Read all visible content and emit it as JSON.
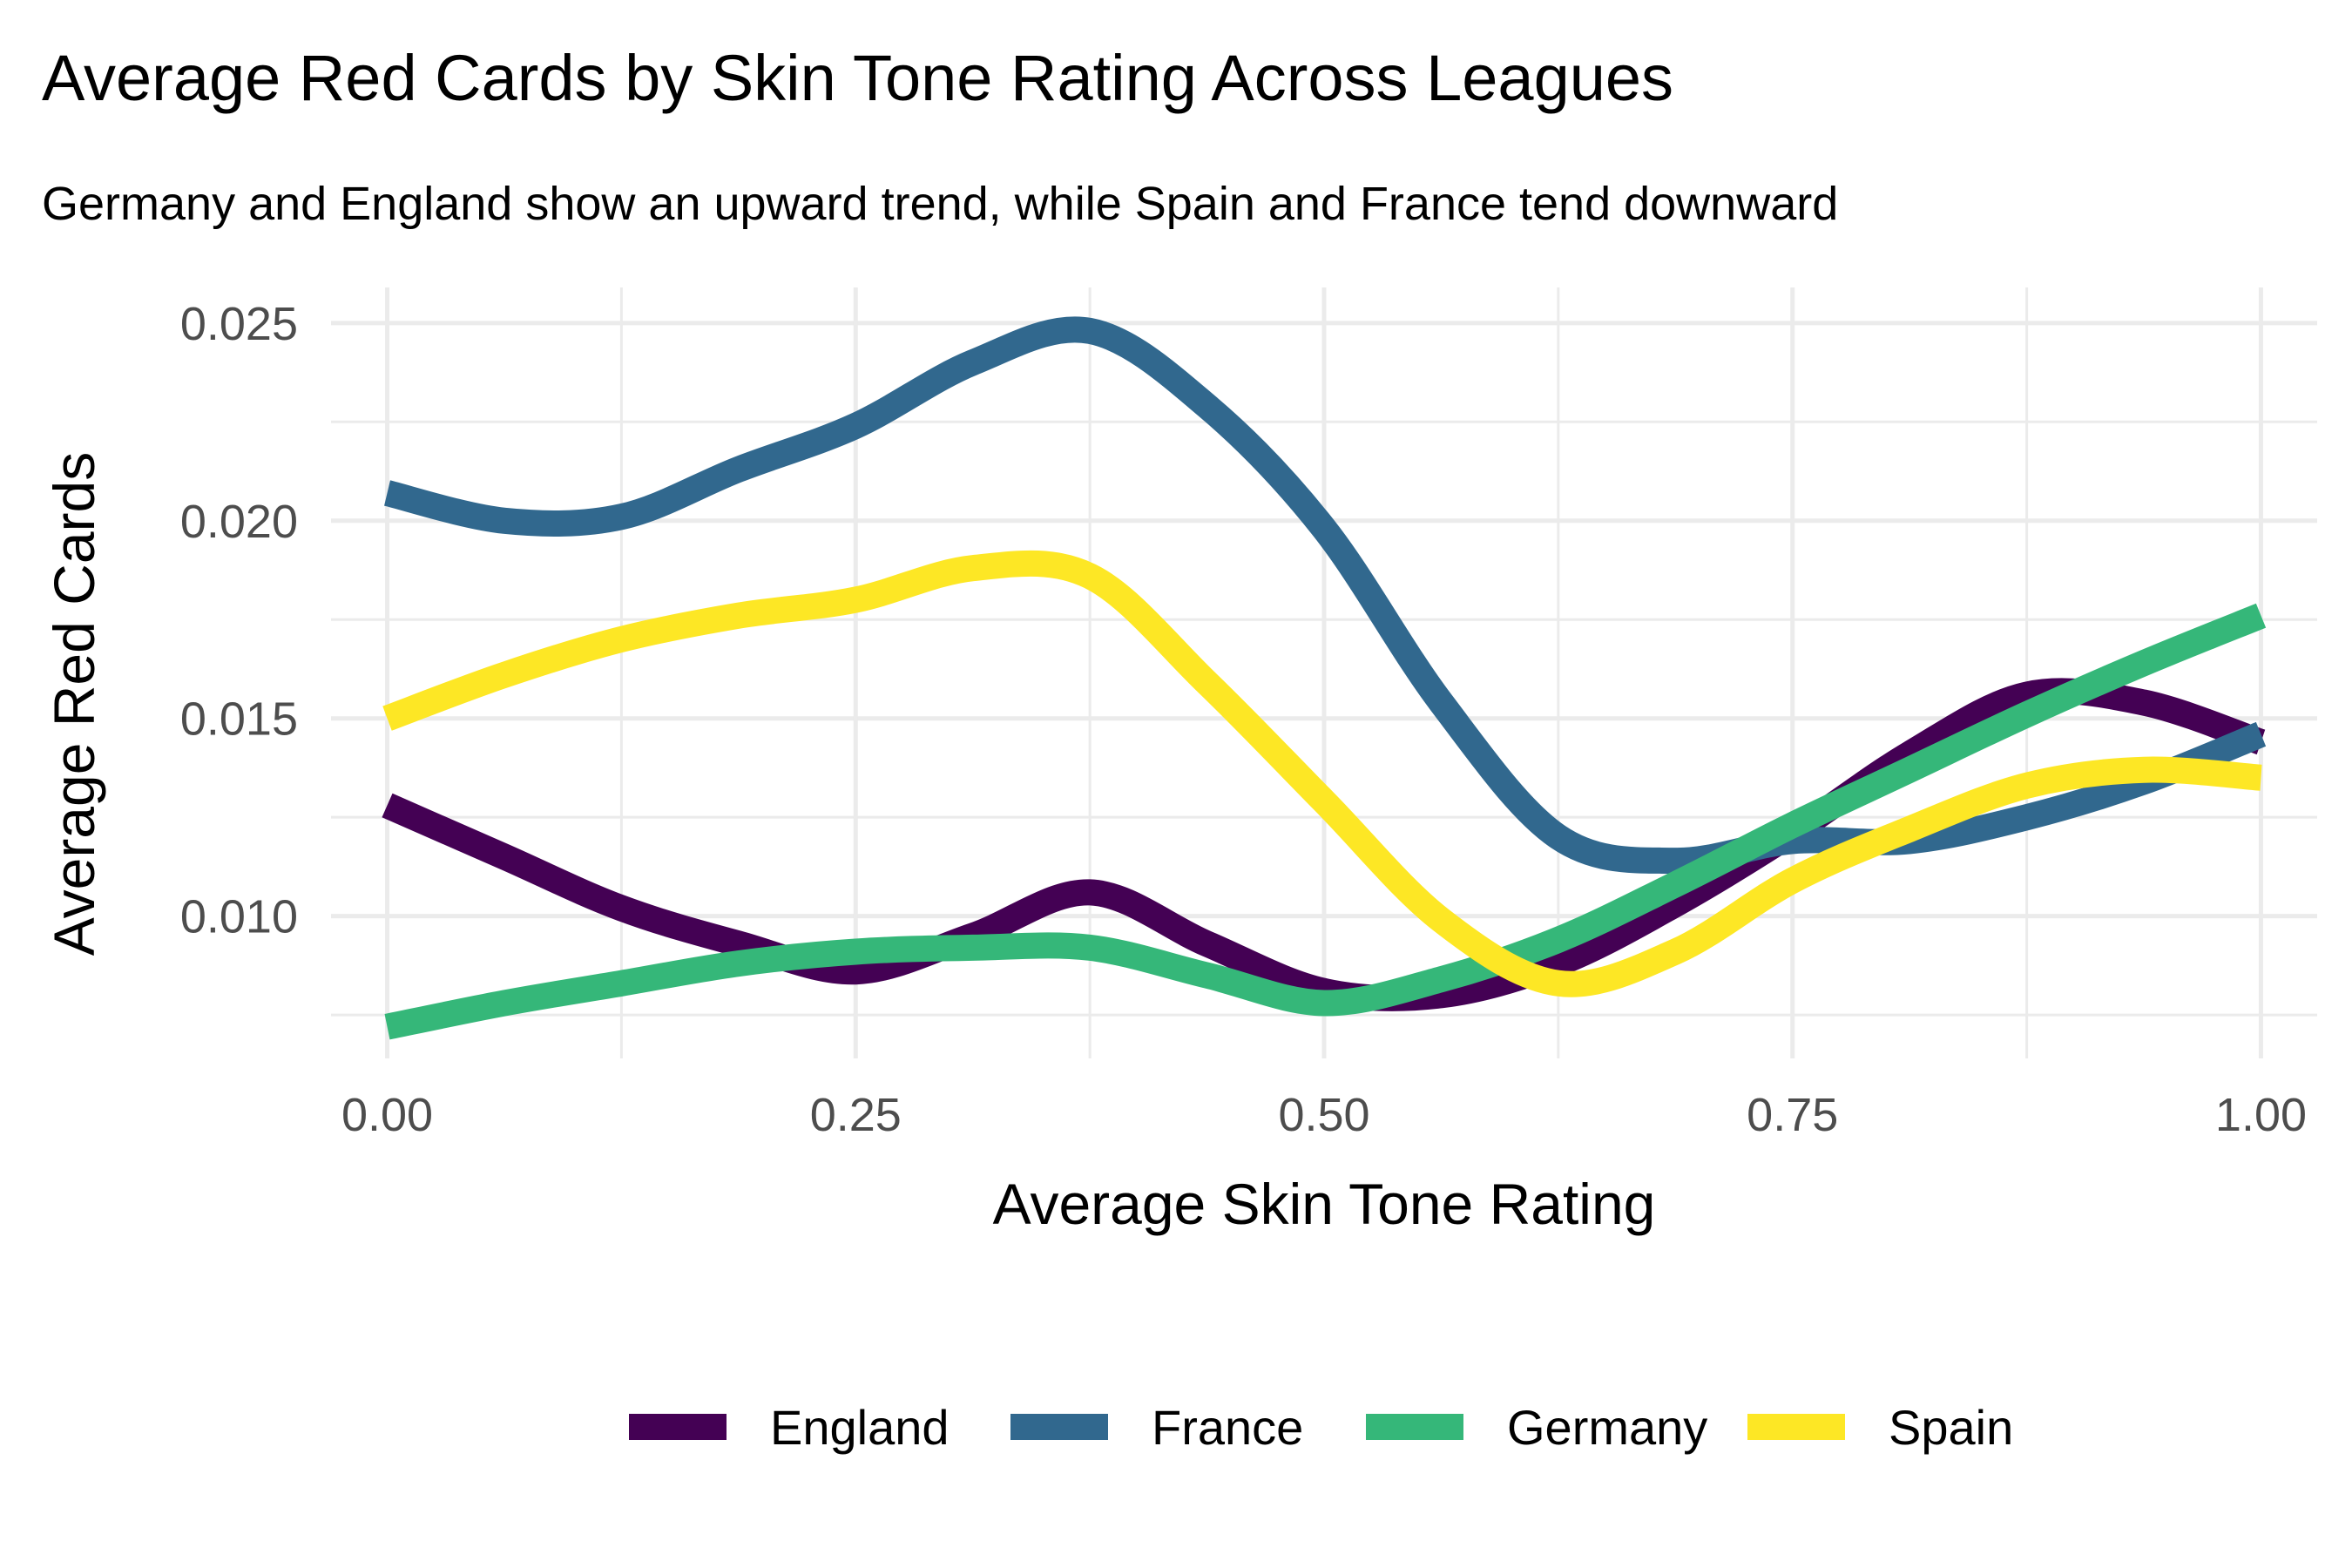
{
  "chart_data": {
    "type": "line",
    "title": "Average Red Cards by Skin Tone Rating Across Leagues",
    "subtitle": "Germany and England show an upward trend, while Spain and France tend downward",
    "xlabel": "Average Skin Tone Rating",
    "ylabel": "Average Red Cards",
    "xlim": [
      -0.03,
      1.03
    ],
    "ylim": [
      0.0064,
      0.0259
    ],
    "x_ticks": [
      "0.00",
      "0.25",
      "0.50",
      "0.75",
      "1.00"
    ],
    "y_ticks": [
      "0.010",
      "0.015",
      "0.020",
      "0.025"
    ],
    "grid": true,
    "legend_position": "bottom",
    "x": [
      0,
      0.0625,
      0.125,
      0.1875,
      0.25,
      0.3125,
      0.375,
      0.4375,
      0.5,
      0.5625,
      0.625,
      0.6875,
      0.75,
      0.8125,
      0.875,
      0.9375,
      1
    ],
    "series": [
      {
        "name": "England",
        "color": "#440154",
        "values": [
          0.0128,
          0.0115,
          0.0102,
          0.0093,
          0.0086,
          0.0095,
          0.0106,
          0.0093,
          0.0081,
          0.008,
          0.0088,
          0.0103,
          0.0121,
          0.0141,
          0.0156,
          0.0154,
          0.0144
        ]
      },
      {
        "name": "France",
        "color": "#31688E",
        "values": [
          0.0207,
          0.02,
          0.0201,
          0.0213,
          0.0224,
          0.024,
          0.0248,
          0.0229,
          0.0198,
          0.0154,
          0.012,
          0.0114,
          0.0119,
          0.0119,
          0.0125,
          0.0134,
          0.0146
        ]
      },
      {
        "name": "Germany",
        "color": "#35B779",
        "values": [
          0.0072,
          0.0078,
          0.0083,
          0.0088,
          0.0091,
          0.0092,
          0.0092,
          0.0085,
          0.0078,
          0.0084,
          0.0094,
          0.0108,
          0.0123,
          0.0137,
          0.0151,
          0.0164,
          0.0176
        ]
      },
      {
        "name": "Spain",
        "color": "#FDE725",
        "values": [
          0.015,
          0.0161,
          0.017,
          0.0176,
          0.018,
          0.0188,
          0.0186,
          0.0159,
          0.0129,
          0.0099,
          0.0083,
          0.0091,
          0.0109,
          0.0122,
          0.0133,
          0.0137,
          0.0135
        ]
      }
    ]
  }
}
